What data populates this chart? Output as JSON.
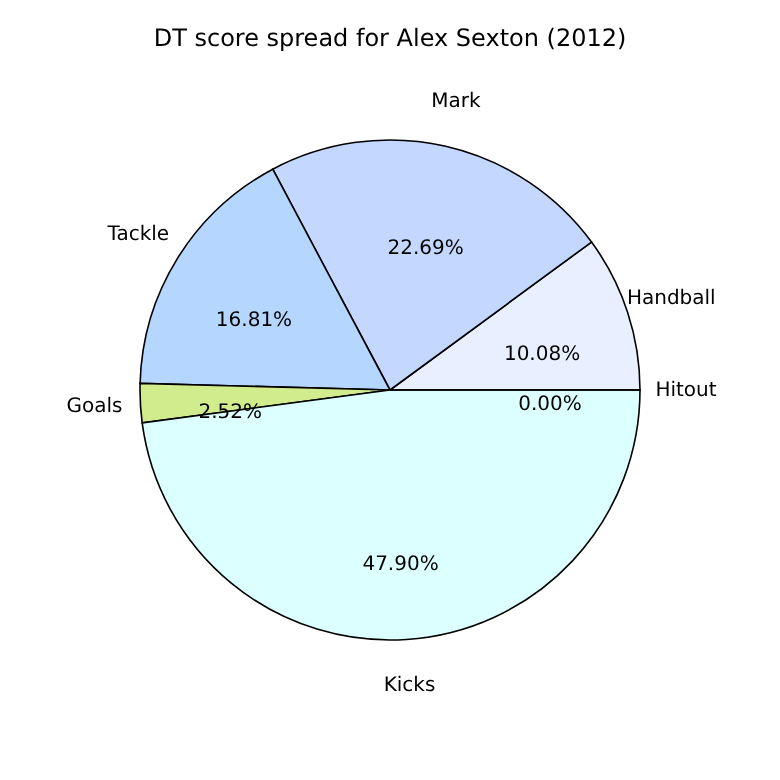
{
  "chart_data": {
    "type": "pie",
    "title": "DT score spread for Alex Sexton (2012)",
    "categories": [
      "Handball",
      "Mark",
      "Tackle",
      "Goals",
      "Kicks",
      "Hitout"
    ],
    "values": [
      10.08,
      22.69,
      16.81,
      2.52,
      47.9,
      0.0
    ],
    "value_labels": [
      "10.08%",
      "22.69%",
      "16.81%",
      "2.52%",
      "47.90%",
      "0.00%"
    ],
    "colors": [
      "#e8f0ff",
      "#c4d8ff",
      "#b4d6ff",
      "#d0ec8c",
      "#dcffff",
      "#eef4ff"
    ],
    "legend": false
  }
}
